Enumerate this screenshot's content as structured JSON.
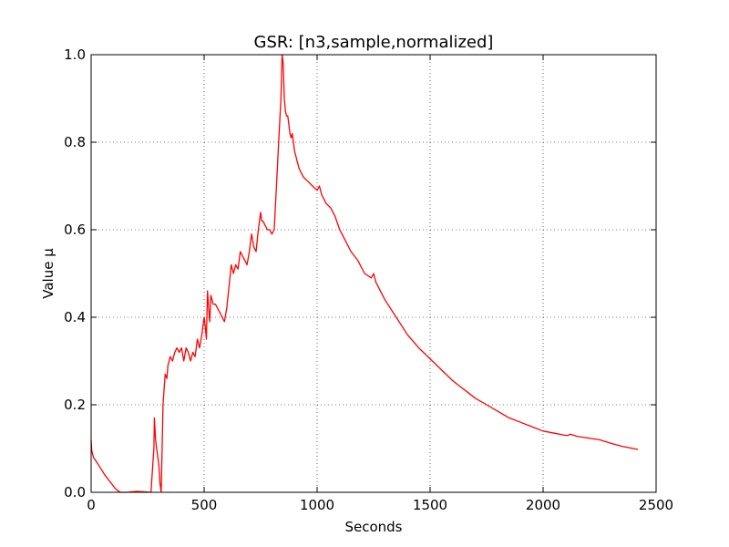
{
  "chart_data": {
    "type": "line",
    "title": "GSR: [n3,sample,normalized]",
    "xlabel": "Seconds",
    "ylabel": "Value μ",
    "xlim": [
      0,
      2500
    ],
    "ylim": [
      0.0,
      1.0
    ],
    "xticks": [
      0,
      500,
      1000,
      1500,
      2000,
      2500
    ],
    "yticks": [
      0.0,
      0.2,
      0.4,
      0.6,
      0.8,
      1.0
    ],
    "xtick_labels": [
      "0",
      "500",
      "1000",
      "1500",
      "2000",
      "2500"
    ],
    "ytick_labels": [
      "0.0",
      "0.2",
      "0.4",
      "0.6",
      "0.8",
      "1.0"
    ],
    "grid": true,
    "series": [
      {
        "color": "#ff0000",
        "x": [
          0,
          3,
          10,
          30,
          60,
          90,
          105,
          115,
          130,
          160,
          200,
          240,
          265,
          275,
          278,
          280,
          285,
          290,
          295,
          300,
          305,
          310,
          315,
          318,
          322,
          328,
          335,
          340,
          350,
          360,
          370,
          380,
          390,
          400,
          410,
          420,
          430,
          440,
          450,
          460,
          470,
          480,
          490,
          500,
          505,
          510,
          515,
          520,
          525,
          530,
          535,
          540,
          550,
          560,
          570,
          580,
          590,
          600,
          610,
          620,
          630,
          640,
          650,
          660,
          670,
          680,
          690,
          700,
          710,
          720,
          730,
          740,
          750,
          755,
          760,
          770,
          780,
          790,
          800,
          810,
          820,
          830,
          840,
          845,
          850,
          855,
          860,
          865,
          870,
          880,
          885,
          890,
          895,
          900,
          910,
          920,
          940,
          960,
          980,
          1000,
          1010,
          1020,
          1040,
          1060,
          1070,
          1080,
          1100,
          1120,
          1150,
          1180,
          1210,
          1240,
          1250,
          1260,
          1300,
          1350,
          1400,
          1450,
          1500,
          1550,
          1600,
          1650,
          1700,
          1750,
          1800,
          1850,
          1900,
          1950,
          2000,
          2050,
          2100,
          2110,
          2120,
          2150,
          2200,
          2250,
          2300,
          2350,
          2400,
          2420
        ],
        "y": [
          0.12,
          0.095,
          0.08,
          0.065,
          0.04,
          0.02,
          0.01,
          0.005,
          0.0,
          0.0,
          0.002,
          0.001,
          0.0,
          0.08,
          0.1,
          0.17,
          0.12,
          0.1,
          0.08,
          0.06,
          0.02,
          0.0,
          0.12,
          0.2,
          0.23,
          0.27,
          0.26,
          0.29,
          0.31,
          0.3,
          0.32,
          0.33,
          0.32,
          0.33,
          0.3,
          0.33,
          0.32,
          0.3,
          0.32,
          0.31,
          0.35,
          0.33,
          0.36,
          0.4,
          0.38,
          0.35,
          0.46,
          0.42,
          0.39,
          0.45,
          0.44,
          0.43,
          0.43,
          0.42,
          0.41,
          0.4,
          0.39,
          0.42,
          0.47,
          0.52,
          0.5,
          0.52,
          0.51,
          0.55,
          0.54,
          0.53,
          0.52,
          0.55,
          0.59,
          0.56,
          0.55,
          0.6,
          0.64,
          0.62,
          0.62,
          0.61,
          0.6,
          0.6,
          0.59,
          0.6,
          0.7,
          0.8,
          0.9,
          1.0,
          0.98,
          0.9,
          0.87,
          0.86,
          0.86,
          0.82,
          0.81,
          0.82,
          0.8,
          0.78,
          0.76,
          0.74,
          0.72,
          0.71,
          0.7,
          0.69,
          0.7,
          0.68,
          0.66,
          0.65,
          0.64,
          0.63,
          0.6,
          0.58,
          0.55,
          0.53,
          0.5,
          0.49,
          0.5,
          0.48,
          0.44,
          0.4,
          0.36,
          0.33,
          0.305,
          0.28,
          0.255,
          0.235,
          0.215,
          0.2,
          0.185,
          0.17,
          0.16,
          0.15,
          0.14,
          0.135,
          0.13,
          0.13,
          0.133,
          0.128,
          0.124,
          0.12,
          0.112,
          0.105,
          0.1,
          0.098
        ]
      }
    ]
  }
}
